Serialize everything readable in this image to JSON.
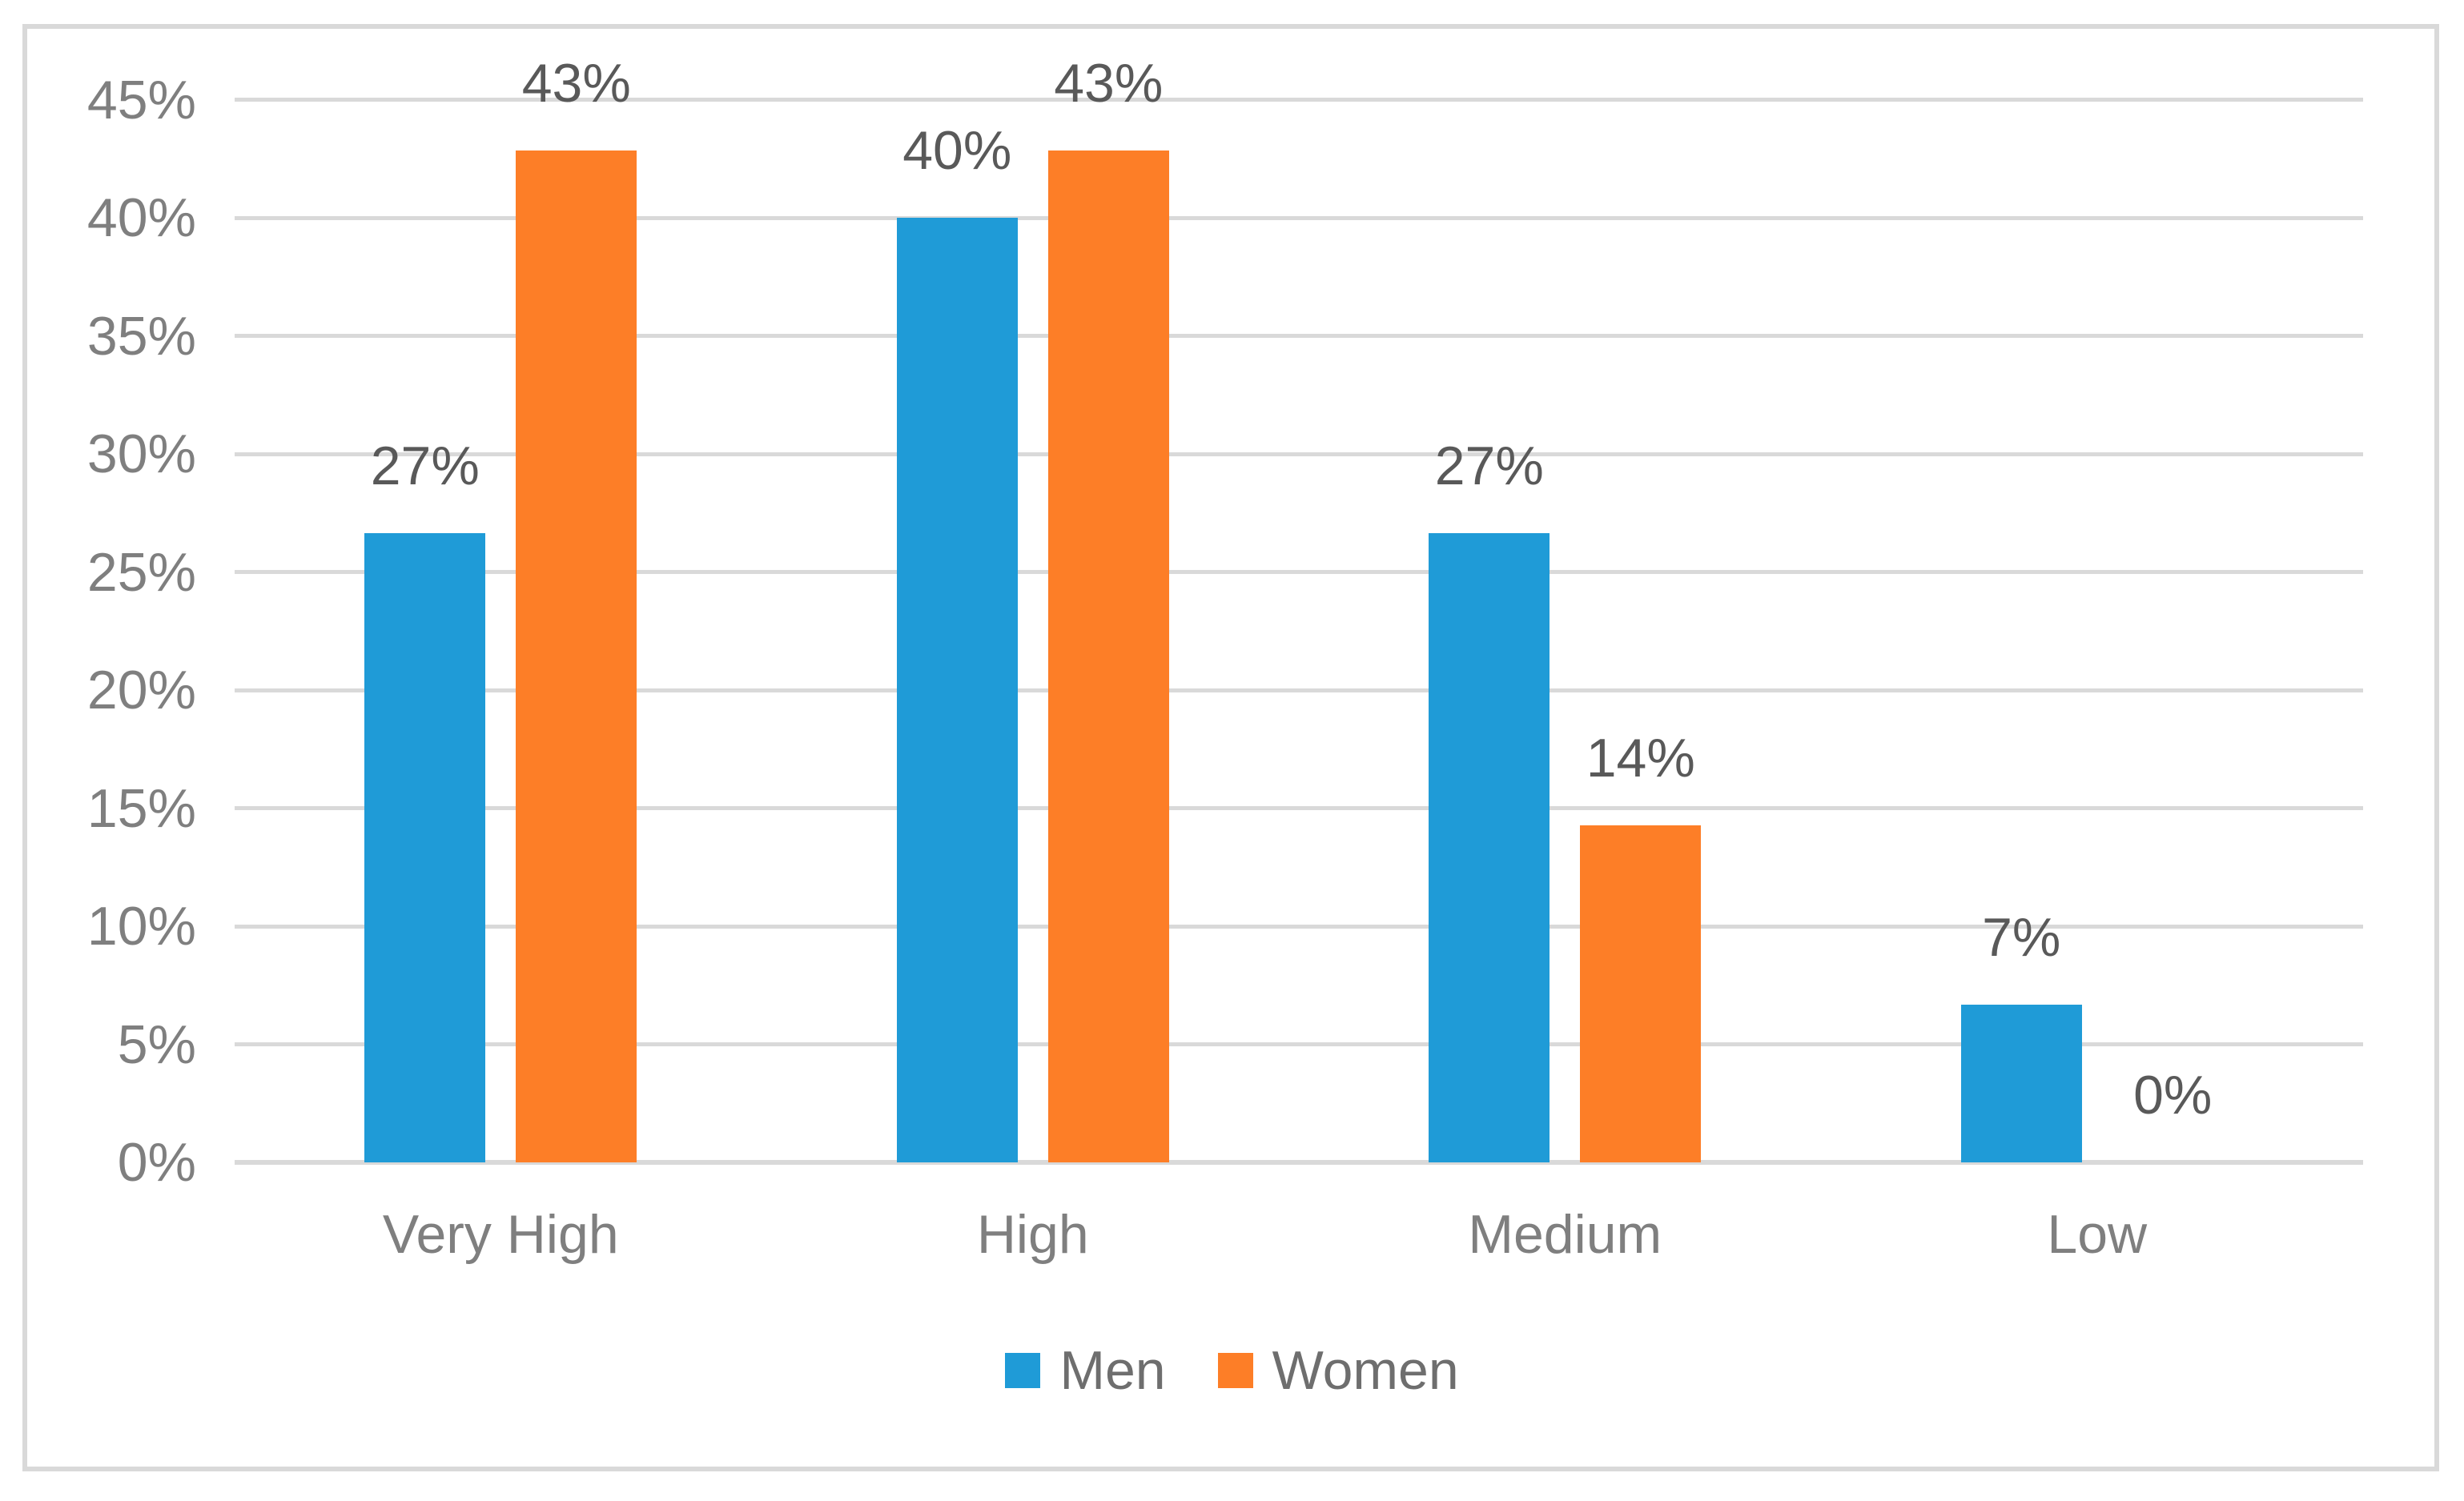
{
  "window": {
    "background": "#FFFFFF",
    "border_color": "#D9D9D9"
  },
  "chart_data": {
    "type": "bar",
    "title": "",
    "xlabel": "",
    "ylabel": "",
    "categories": [
      "Very High",
      "High",
      "Medium",
      "Low"
    ],
    "series": [
      {
        "name": "Men",
        "color": "#1F9BD7",
        "values": [
          27,
          40,
          27,
          7
        ],
        "values_exact": [
          26.667,
          40,
          26.667,
          6.667
        ],
        "labels": [
          "27%",
          "40%",
          "27%",
          "7%"
        ]
      },
      {
        "name": "Women",
        "color": "#FD7E27",
        "values": [
          43,
          43,
          14,
          0
        ],
        "values_exact": [
          42.857,
          42.857,
          14.286,
          0
        ],
        "labels": [
          "43%",
          "43%",
          "14%",
          "0%"
        ]
      }
    ],
    "y_axis": {
      "min": 0,
      "max": 45,
      "step": 5,
      "tick_labels": [
        "0%",
        "5%",
        "10%",
        "15%",
        "20%",
        "25%",
        "30%",
        "35%",
        "40%",
        "45%"
      ]
    },
    "grid": true,
    "gridline_color": "#D9D9D9",
    "axis_line_color": "#D9D9D9",
    "legend_position": "bottom",
    "text_colors": {
      "ticks": "#7F7F7F",
      "categories": "#7F7F7F",
      "data_labels": "#595959",
      "legend": "#6E6E6E"
    }
  }
}
